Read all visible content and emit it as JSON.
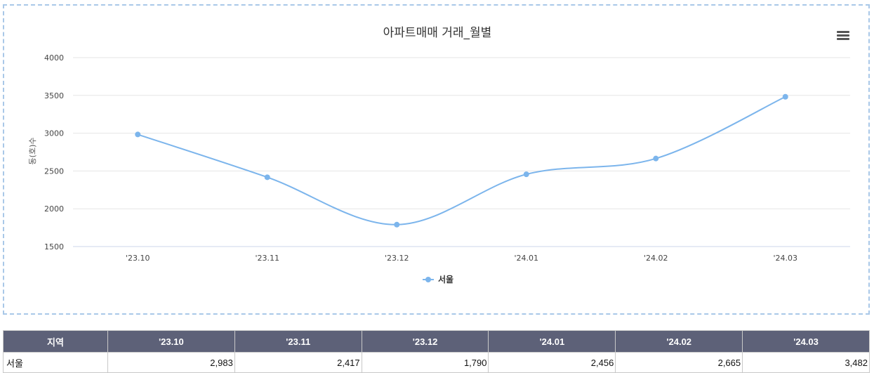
{
  "chart_data": {
    "type": "line",
    "title": "아파트매매 거래_월별",
    "ylabel": "동(호)수",
    "xlabel": "",
    "categories": [
      "'23.10",
      "'23.11",
      "'23.12",
      "'24.01",
      "'24.02",
      "'24.03"
    ],
    "series": [
      {
        "name": "서울",
        "values": [
          2983,
          2417,
          1790,
          2456,
          2665,
          3482
        ],
        "color": "#7cb5ec"
      }
    ],
    "ylim": [
      1500,
      4000
    ],
    "yticks": [
      1500,
      2000,
      2500,
      3000,
      3500,
      4000
    ],
    "grid": true,
    "legend_position": "bottom-center"
  },
  "menu": {
    "icon": "hamburger-menu-icon"
  },
  "table": {
    "headers": [
      "지역",
      "'23.10",
      "'23.11",
      "'23.12",
      "'24.01",
      "'24.02",
      "'24.03"
    ],
    "rows": [
      [
        "서울",
        "2,983",
        "2,417",
        "1,790",
        "2,456",
        "2,665",
        "3,482"
      ]
    ]
  },
  "colors": {
    "series": "#7cb5ec",
    "header_bg": "#5d6178",
    "grid": "#e6e6e6",
    "panel_border": "#a9c8e8"
  }
}
